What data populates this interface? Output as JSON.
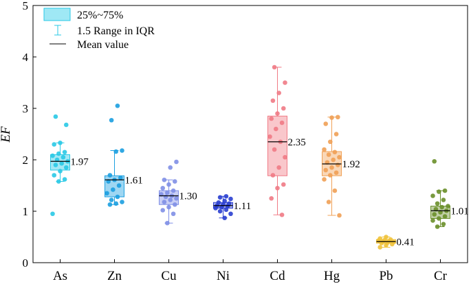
{
  "chart_data": {
    "type": "box",
    "title": "",
    "xlabel": "",
    "ylabel": "EF",
    "ylim": [
      0,
      5
    ],
    "yticks": [
      0,
      1,
      2,
      3,
      4,
      5
    ],
    "legend": {
      "position": "top-left",
      "entries": [
        "25%~75%",
        "1.5 Range in IQR",
        "Mean value"
      ]
    },
    "categories": [
      "As",
      "Zn",
      "Cu",
      "Ni",
      "Cd",
      "Hg",
      "Pb",
      "Cr"
    ],
    "series": [
      {
        "name": "As",
        "color": "#29c9e6",
        "q1": 1.8,
        "q3": 2.1,
        "median": 1.97,
        "mean": 1.97,
        "mean_label": "1.97",
        "whisker_low": 1.58,
        "whisker_high": 2.33,
        "points": [
          0.95,
          1.58,
          1.62,
          1.7,
          1.78,
          1.85,
          1.9,
          1.93,
          1.97,
          2.0,
          2.05,
          2.08,
          2.12,
          2.15,
          2.3,
          2.33,
          2.68,
          2.84
        ]
      },
      {
        "name": "Zn",
        "color": "#1b9fe0",
        "q1": 1.28,
        "q3": 1.69,
        "median": 1.61,
        "mean": 1.61,
        "mean_label": "1.61",
        "whisker_low": 1.13,
        "whisker_high": 2.18,
        "points": [
          1.13,
          1.15,
          1.18,
          1.22,
          1.28,
          1.35,
          1.42,
          1.5,
          1.58,
          1.61,
          1.65,
          1.7,
          2.16,
          2.18,
          2.77,
          3.05
        ]
      },
      {
        "name": "Cu",
        "color": "#7f8fe6",
        "q1": 1.13,
        "q3": 1.4,
        "median": 1.3,
        "mean": 1.3,
        "mean_label": "1.30",
        "whisker_low": 0.77,
        "whisker_high": 1.61,
        "points": [
          0.77,
          0.95,
          1.02,
          1.08,
          1.13,
          1.18,
          1.22,
          1.25,
          1.28,
          1.3,
          1.33,
          1.36,
          1.4,
          1.45,
          1.52,
          1.58,
          1.61,
          1.85,
          1.96
        ]
      },
      {
        "name": "Ni",
        "color": "#2a3fd0",
        "q1": 1.06,
        "q3": 1.17,
        "median": 1.11,
        "mean": 1.11,
        "mean_label": "1.11",
        "whisker_low": 0.87,
        "whisker_high": 1.29,
        "points": [
          0.87,
          0.95,
          1.0,
          1.03,
          1.06,
          1.08,
          1.1,
          1.11,
          1.13,
          1.15,
          1.17,
          1.2,
          1.24,
          1.27,
          1.29
        ]
      },
      {
        "name": "Cd",
        "color": "#f07a85",
        "q1": 1.69,
        "q3": 2.85,
        "median": 2.35,
        "mean": 2.35,
        "mean_label": "2.35",
        "whisker_low": 0.93,
        "whisker_high": 3.8,
        "points": [
          0.93,
          1.25,
          1.45,
          1.52,
          1.7,
          1.85,
          2.05,
          2.2,
          2.35,
          2.45,
          2.6,
          2.72,
          2.8,
          2.9,
          3.0,
          3.15,
          3.3,
          3.5,
          3.8
        ]
      },
      {
        "name": "Hg",
        "color": "#f0a055",
        "q1": 1.69,
        "q3": 2.16,
        "median": 1.92,
        "mean": 1.92,
        "mean_label": "1.92",
        "whisker_low": 0.92,
        "whisker_high": 2.83,
        "points": [
          0.92,
          1.18,
          1.4,
          1.62,
          1.7,
          1.75,
          1.8,
          1.85,
          1.9,
          1.95,
          2.0,
          2.05,
          2.1,
          2.15,
          2.2,
          2.35,
          2.5,
          2.7,
          2.82,
          2.83
        ]
      },
      {
        "name": "Pb",
        "color": "#f0c23a",
        "q1": 0.38,
        "q3": 0.45,
        "median": 0.41,
        "mean": 0.41,
        "mean_label": "0.41",
        "whisker_low": 0.3,
        "whisker_high": 0.5,
        "points": [
          0.3,
          0.34,
          0.36,
          0.38,
          0.39,
          0.4,
          0.41,
          0.42,
          0.43,
          0.44,
          0.45,
          0.47,
          0.5
        ]
      },
      {
        "name": "Cr",
        "color": "#6a8f2a",
        "q1": 0.86,
        "q3": 1.1,
        "median": 1.01,
        "mean": 1.01,
        "mean_label": "1.01",
        "whisker_low": 0.7,
        "whisker_high": 1.4,
        "points": [
          0.7,
          0.75,
          0.82,
          0.86,
          0.9,
          0.94,
          0.98,
          1.01,
          1.04,
          1.08,
          1.1,
          1.15,
          1.22,
          1.3,
          1.38,
          1.4,
          1.97
        ]
      }
    ]
  }
}
